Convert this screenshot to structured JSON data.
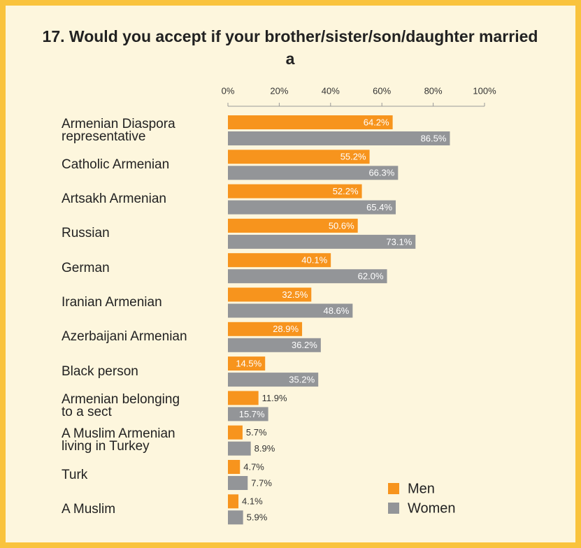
{
  "chart_data": {
    "type": "bar",
    "orientation": "horizontal",
    "title": "17. Would you accept if your brother/sister/son/daughter married a",
    "categories": [
      "Armenian Diaspora\nrepresentative",
      "Catholic Armenian",
      "Artsakh Armenian",
      "Russian",
      "German",
      "Iranian Armenian",
      "Azerbaijani Armenian",
      "Black person",
      "Armenian belonging\nto a sect",
      "A Muslim Armenian\nliving in Turkey",
      "Turk",
      "A Muslim"
    ],
    "series": [
      {
        "name": "Men",
        "color": "#f7941d",
        "values": [
          64.2,
          55.2,
          52.2,
          50.6,
          40.1,
          32.5,
          28.9,
          14.5,
          11.9,
          5.7,
          4.7,
          4.1
        ],
        "value_labels": [
          "64.2%",
          "55.2%",
          "52.2%",
          "50.6%",
          "40.1%",
          "32.5%",
          "28.9%",
          "14.5%",
          "11.9%",
          "5.7%",
          "4.7%",
          "4.1%"
        ]
      },
      {
        "name": "Women",
        "color": "#939598",
        "values": [
          86.5,
          66.3,
          65.4,
          73.1,
          62.0,
          48.6,
          36.2,
          35.2,
          15.7,
          8.9,
          7.7,
          5.9
        ],
        "value_labels": [
          "86.5%",
          "66.3%",
          "65.4%",
          "73.1%",
          "62.0%",
          "48.6%",
          "36.2%",
          "35.2%",
          "15.7%",
          "8.9%",
          "7.7%",
          "5.9%"
        ]
      }
    ],
    "xlim": [
      0,
      100
    ],
    "xticks": [
      {
        "value": 0,
        "label": "0%"
      },
      {
        "value": 20,
        "label": "20%"
      },
      {
        "value": 40,
        "label": "40%"
      },
      {
        "value": 60,
        "label": "60%"
      },
      {
        "value": 80,
        "label": "80%"
      },
      {
        "value": 100,
        "label": "100%"
      }
    ],
    "legend": "lower right"
  }
}
